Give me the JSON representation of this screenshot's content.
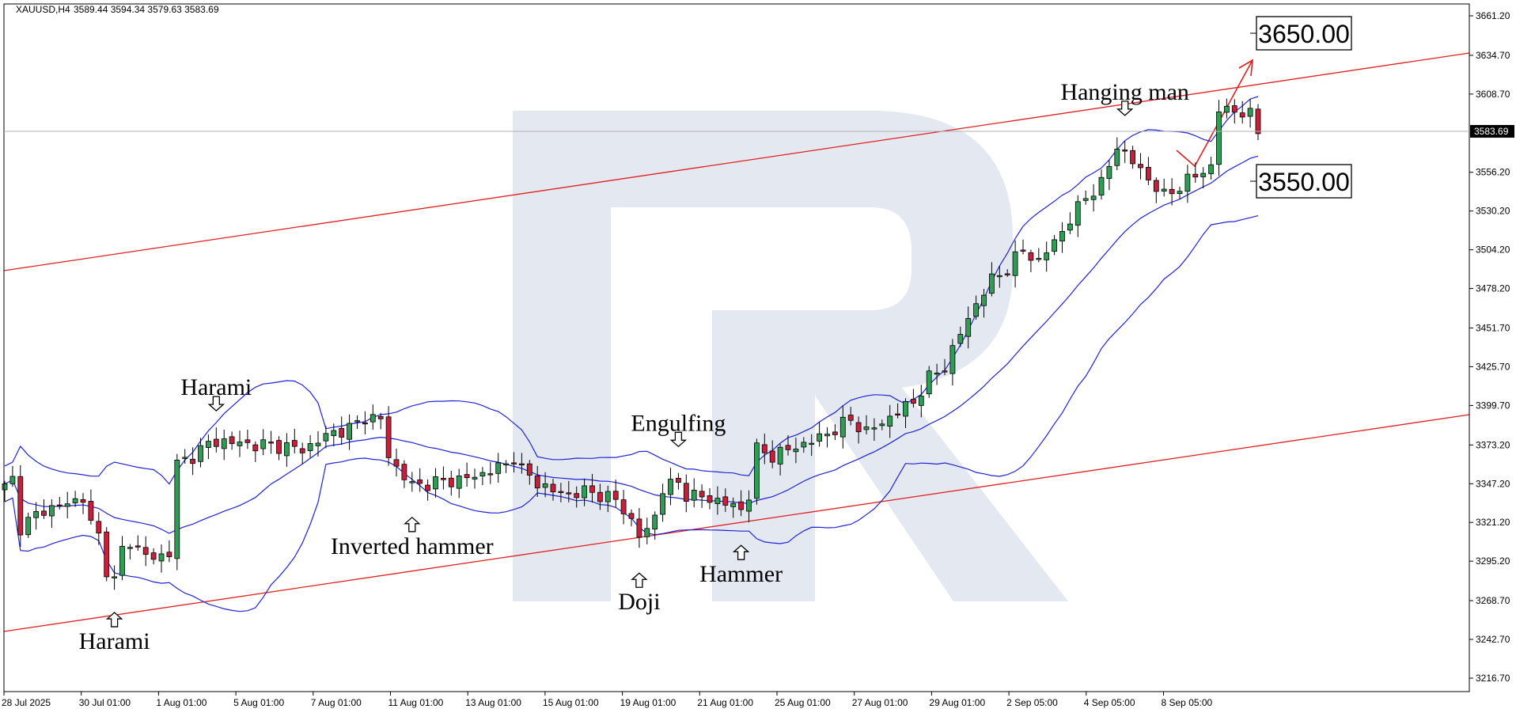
{
  "chart_data": {
    "type": "candlestick",
    "symbol": "XAUUSD,H4",
    "ohlc_header": "3589.44 3594.34 3579.63 3583.69",
    "current_price": "3583.69",
    "y_ticks": [
      "3661.20",
      "3634.70",
      "3608.70",
      "3583.69",
      "3556.20",
      "3530.20",
      "3504.20",
      "3478.20",
      "3451.70",
      "3425.70",
      "3399.70",
      "3373.20",
      "3347.20",
      "3321.20",
      "3295.20",
      "3268.70",
      "3242.70",
      "3216.70"
    ],
    "ylim": [
      3203,
      3675
    ],
    "x_ticks": [
      "28 Jul 2025",
      "30 Jul 01:00",
      "1 Aug 01:00",
      "5 Aug 01:00",
      "7 Aug 01:00",
      "11 Aug 01:00",
      "13 Aug 01:00",
      "15 Aug 01:00",
      "19 Aug 01:00",
      "21 Aug 01:00",
      "25 Aug 01:00",
      "27 Aug 01:00",
      "29 Aug 01:00",
      "2 Sep 05:00",
      "4 Sep 05:00",
      "8 Sep 05:00"
    ],
    "annotations": [
      {
        "text": "Harami",
        "direction": "down",
        "candle": 27
      },
      {
        "text": "Harami",
        "direction": "up",
        "candle": 14
      },
      {
        "text": "Inverted hammer",
        "direction": "up",
        "candle": 52
      },
      {
        "text": "Engulfing",
        "direction": "down",
        "candle": 86
      },
      {
        "text": "Doji",
        "direction": "up",
        "candle": 81
      },
      {
        "text": "Hammer",
        "direction": "up",
        "candle": 94
      },
      {
        "text": "Hanging man",
        "direction": "down",
        "candle": 143
      }
    ],
    "levels": [
      "3650.00",
      "3550.00"
    ],
    "colors": {
      "bull": "#2e9e55",
      "bear": "#c8203a",
      "band": "#1f23d8",
      "trend": "#e02020",
      "watermark": "#e3e8f1"
    }
  }
}
